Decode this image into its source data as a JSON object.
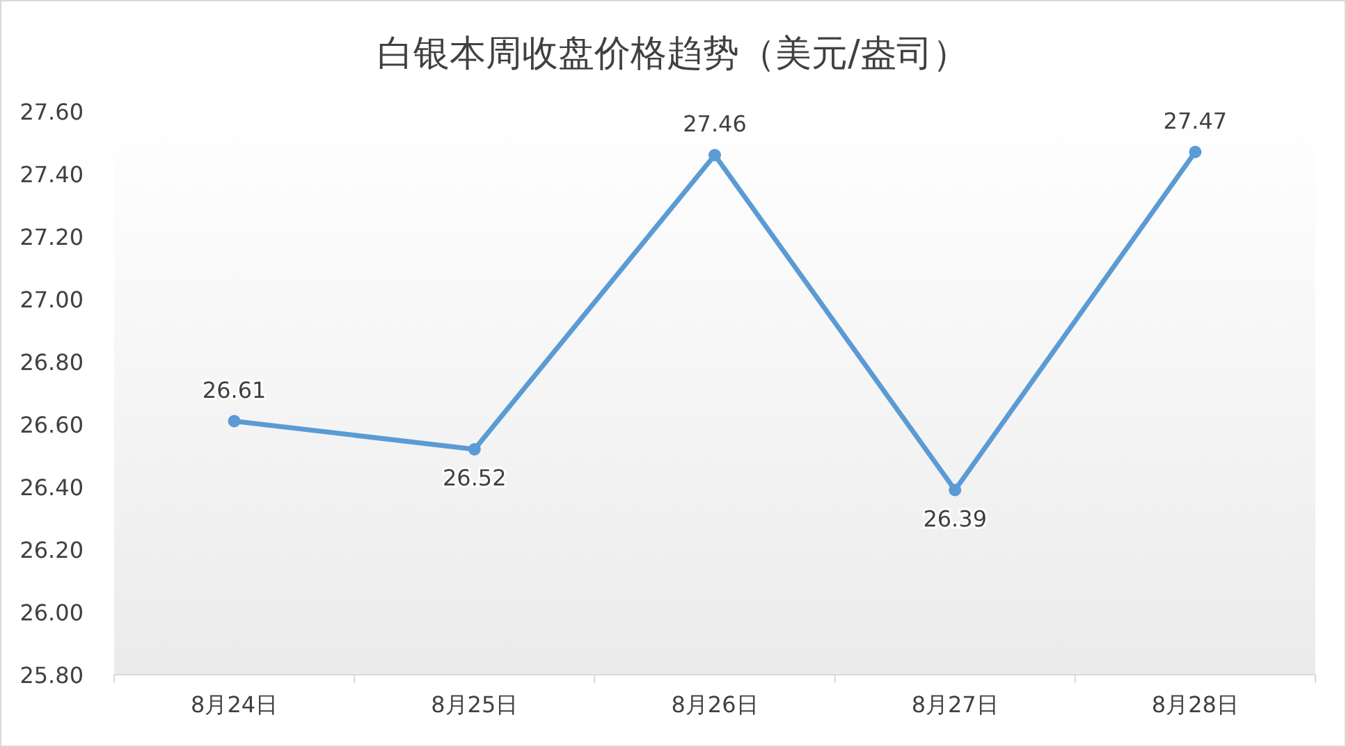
{
  "chart_data": {
    "type": "line",
    "title": "白银本周收盘价格趋势（美元/盎司）",
    "categories": [
      "8月24日",
      "8月25日",
      "8月26日",
      "8月27日",
      "8月28日"
    ],
    "series": [
      {
        "color": "#5b9bd5",
        "values": [
          26.61,
          26.52,
          27.46,
          26.39,
          27.47
        ]
      }
    ],
    "ylim": [
      25.8,
      27.6
    ],
    "yticks": [
      {
        "value": 25.8,
        "label": "25.80"
      },
      {
        "value": 26.0,
        "label": "26.00"
      },
      {
        "value": 26.2,
        "label": "26.20"
      },
      {
        "value": 26.4,
        "label": "26.40"
      },
      {
        "value": 26.6,
        "label": "26.60"
      },
      {
        "value": 26.8,
        "label": "26.80"
      },
      {
        "value": 27.0,
        "label": "27.00"
      },
      {
        "value": 27.2,
        "label": "27.20"
      },
      {
        "value": 27.4,
        "label": "27.40"
      },
      {
        "value": 27.6,
        "label": "27.60"
      }
    ],
    "data_labels": true,
    "marker": "circle",
    "line_style": "solid",
    "grid": false
  }
}
